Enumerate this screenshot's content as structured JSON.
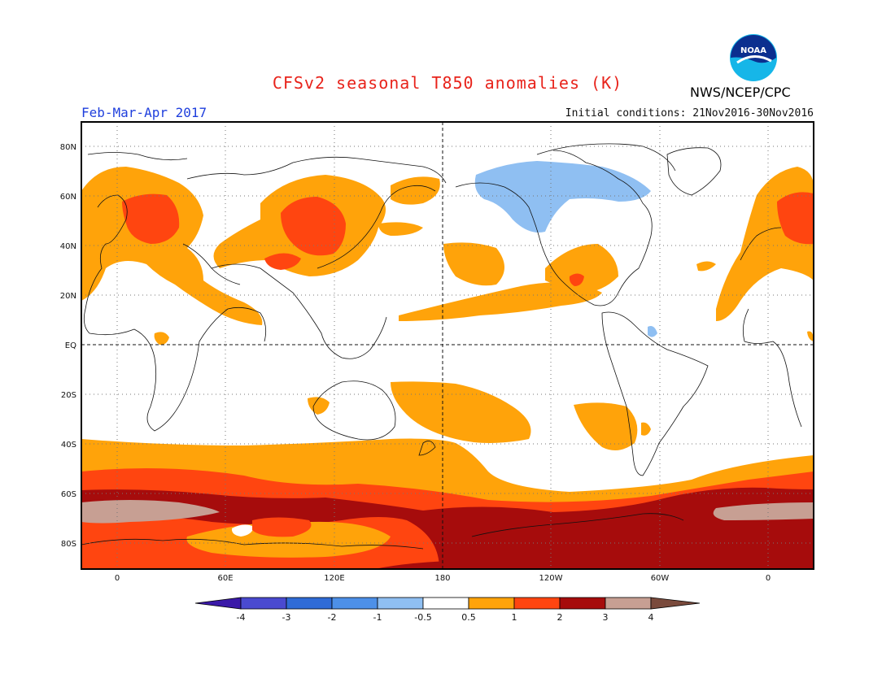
{
  "header": {
    "title": "CFSv2 seasonal T850 anomalies (K)",
    "season": "Feb-Mar-Apr 2017",
    "initial_conditions": "Initial conditions: 21Nov2016-30Nov2016",
    "agency": "NWS/NCEP/CPC",
    "logo_text": "NOAA"
  },
  "map": {
    "lat_labels": [
      "80N",
      "60N",
      "40N",
      "20N",
      "EQ",
      "20S",
      "40S",
      "60S",
      "80S"
    ],
    "lon_labels": [
      "0",
      "60E",
      "120E",
      "180",
      "120W",
      "60W",
      "0"
    ]
  },
  "colorbar": {
    "tick_labels": [
      "-4",
      "-3",
      "-2",
      "-1",
      "-0.5",
      "0.5",
      "1",
      "2",
      "3",
      "4"
    ],
    "colors": [
      "#3a19a8",
      "#4a4ad0",
      "#2f6bd6",
      "#4d90e8",
      "#8fbff2",
      "#ffffff",
      "#ffa30a",
      "#ff4510",
      "#a60c0c",
      "#c79f93",
      "#7a4a3c"
    ]
  }
}
